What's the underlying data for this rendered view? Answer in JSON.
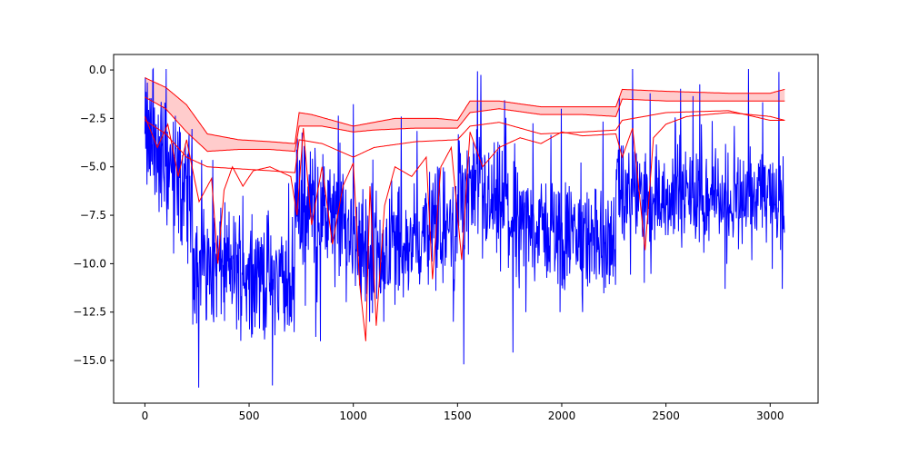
{
  "chart_data": {
    "type": "line",
    "title": "",
    "xlabel": "",
    "ylabel": "",
    "xlim": [
      -150,
      3230
    ],
    "ylim": [
      -17.2,
      0.8
    ],
    "grid": false,
    "legend": "none",
    "x_ticks": [
      0,
      500,
      1000,
      1500,
      2000,
      2500,
      3000
    ],
    "y_ticks": [
      0.0,
      -2.5,
      -5.0,
      -7.5,
      -10.0,
      -12.5,
      -15.0
    ],
    "x_tick_labels": [
      "0",
      "500",
      "1000",
      "1500",
      "2000",
      "2500",
      "3000"
    ],
    "y_tick_labels": [
      "0.0",
      "−2.5",
      "−5.0",
      "−7.5",
      "−10.0",
      "−12.5",
      "−15.0"
    ],
    "colors": {
      "signal": "#0000ff",
      "band_line": "#ff0000",
      "band_fill": "#ffcccc"
    },
    "n_points": 3070,
    "signal_segments": [
      {
        "x0": 0,
        "x1": 230,
        "start": -3.5,
        "end": -6.5,
        "amp": 2.6,
        "floor_spike": -11.7
      },
      {
        "x0": 230,
        "x1": 720,
        "start": -9.8,
        "end": -11.0,
        "amp": 2.3,
        "floor_spike": -16.4
      },
      {
        "x0": 720,
        "x1": 1050,
        "start": -6.5,
        "end": -8.8,
        "amp": 2.4,
        "floor_spike": -14.0
      },
      {
        "x0": 1050,
        "x1": 1500,
        "start": -9.5,
        "end": -8.0,
        "amp": 2.3,
        "floor_spike": -13.0
      },
      {
        "x0": 1500,
        "x1": 1820,
        "start": -6.0,
        "end": -8.0,
        "amp": 2.4,
        "floor_spike": -15.2
      },
      {
        "x0": 1820,
        "x1": 2260,
        "start": -8.0,
        "end": -9.0,
        "amp": 2.0,
        "floor_spike": -12.5
      },
      {
        "x0": 2260,
        "x1": 3070,
        "start": -6.5,
        "end": -6.5,
        "amp": 1.8,
        "floor_spike": -11.3
      }
    ],
    "band_upper": [
      {
        "x": 0,
        "y": -0.4
      },
      {
        "x": 100,
        "y": -0.9
      },
      {
        "x": 200,
        "y": -1.8
      },
      {
        "x": 300,
        "y": -3.3
      },
      {
        "x": 450,
        "y": -3.6
      },
      {
        "x": 600,
        "y": -3.7
      },
      {
        "x": 720,
        "y": -3.8
      },
      {
        "x": 740,
        "y": -2.2
      },
      {
        "x": 800,
        "y": -2.3
      },
      {
        "x": 900,
        "y": -2.6
      },
      {
        "x": 1000,
        "y": -2.9
      },
      {
        "x": 1100,
        "y": -2.7
      },
      {
        "x": 1200,
        "y": -2.5
      },
      {
        "x": 1400,
        "y": -2.5
      },
      {
        "x": 1500,
        "y": -2.6
      },
      {
        "x": 1560,
        "y": -1.6
      },
      {
        "x": 1700,
        "y": -1.6
      },
      {
        "x": 1900,
        "y": -1.9
      },
      {
        "x": 2100,
        "y": -1.9
      },
      {
        "x": 2260,
        "y": -1.9
      },
      {
        "x": 2290,
        "y": -1.0
      },
      {
        "x": 2500,
        "y": -1.1
      },
      {
        "x": 2800,
        "y": -1.2
      },
      {
        "x": 3000,
        "y": -1.2
      },
      {
        "x": 3070,
        "y": -1.0
      }
    ],
    "band_mid": [
      {
        "x": 0,
        "y": -1.4
      },
      {
        "x": 100,
        "y": -2.0
      },
      {
        "x": 200,
        "y": -3.2
      },
      {
        "x": 300,
        "y": -4.2
      },
      {
        "x": 450,
        "y": -4.1
      },
      {
        "x": 600,
        "y": -4.1
      },
      {
        "x": 720,
        "y": -4.2
      },
      {
        "x": 740,
        "y": -2.9
      },
      {
        "x": 850,
        "y": -2.9
      },
      {
        "x": 1000,
        "y": -3.2
      },
      {
        "x": 1100,
        "y": -3.1
      },
      {
        "x": 1300,
        "y": -3.0
      },
      {
        "x": 1500,
        "y": -3.0
      },
      {
        "x": 1560,
        "y": -2.2
      },
      {
        "x": 1700,
        "y": -2.0
      },
      {
        "x": 1900,
        "y": -2.3
      },
      {
        "x": 2100,
        "y": -2.3
      },
      {
        "x": 2260,
        "y": -2.4
      },
      {
        "x": 2290,
        "y": -1.5
      },
      {
        "x": 2500,
        "y": -1.6
      },
      {
        "x": 2800,
        "y": -1.6
      },
      {
        "x": 3070,
        "y": -1.6
      }
    ],
    "band_lower": [
      {
        "x": 0,
        "y": -2.6
      },
      {
        "x": 100,
        "y": -3.3
      },
      {
        "x": 200,
        "y": -4.5
      },
      {
        "x": 300,
        "y": -5.0
      },
      {
        "x": 450,
        "y": -5.1
      },
      {
        "x": 600,
        "y": -5.2
      },
      {
        "x": 720,
        "y": -5.3
      },
      {
        "x": 740,
        "y": -3.6
      },
      {
        "x": 850,
        "y": -3.8
      },
      {
        "x": 1000,
        "y": -4.5
      },
      {
        "x": 1100,
        "y": -4.0
      },
      {
        "x": 1300,
        "y": -3.7
      },
      {
        "x": 1500,
        "y": -3.6
      },
      {
        "x": 1560,
        "y": -2.9
      },
      {
        "x": 1700,
        "y": -2.7
      },
      {
        "x": 1900,
        "y": -3.3
      },
      {
        "x": 2100,
        "y": -3.2
      },
      {
        "x": 2260,
        "y": -3.1
      },
      {
        "x": 2290,
        "y": -2.6
      },
      {
        "x": 2500,
        "y": -2.2
      },
      {
        "x": 2800,
        "y": -2.1
      },
      {
        "x": 3000,
        "y": -2.6
      },
      {
        "x": 3070,
        "y": -2.6
      }
    ],
    "red_dip_line": [
      {
        "x": 0,
        "y": -2.4
      },
      {
        "x": 60,
        "y": -4.0
      },
      {
        "x": 110,
        "y": -2.8
      },
      {
        "x": 160,
        "y": -5.5
      },
      {
        "x": 200,
        "y": -3.6
      },
      {
        "x": 260,
        "y": -6.8
      },
      {
        "x": 320,
        "y": -5.6
      },
      {
        "x": 350,
        "y": -10.0
      },
      {
        "x": 380,
        "y": -6.2
      },
      {
        "x": 420,
        "y": -5.0
      },
      {
        "x": 470,
        "y": -6.0
      },
      {
        "x": 520,
        "y": -5.2
      },
      {
        "x": 600,
        "y": -5.0
      },
      {
        "x": 700,
        "y": -5.5
      },
      {
        "x": 730,
        "y": -7.5
      },
      {
        "x": 760,
        "y": -3.0
      },
      {
        "x": 800,
        "y": -8.0
      },
      {
        "x": 850,
        "y": -5.0
      },
      {
        "x": 900,
        "y": -9.0
      },
      {
        "x": 950,
        "y": -6.0
      },
      {
        "x": 1000,
        "y": -4.8
      },
      {
        "x": 1030,
        "y": -11.0
      },
      {
        "x": 1060,
        "y": -14.0
      },
      {
        "x": 1080,
        "y": -6.0
      },
      {
        "x": 1110,
        "y": -13.2
      },
      {
        "x": 1150,
        "y": -7.0
      },
      {
        "x": 1200,
        "y": -5.0
      },
      {
        "x": 1280,
        "y": -5.5
      },
      {
        "x": 1350,
        "y": -4.5
      },
      {
        "x": 1380,
        "y": -10.8
      },
      {
        "x": 1420,
        "y": -5.0
      },
      {
        "x": 1470,
        "y": -4.0
      },
      {
        "x": 1520,
        "y": -9.8
      },
      {
        "x": 1560,
        "y": -3.2
      },
      {
        "x": 1620,
        "y": -5.0
      },
      {
        "x": 1700,
        "y": -4.0
      },
      {
        "x": 1800,
        "y": -3.5
      },
      {
        "x": 1900,
        "y": -3.8
      },
      {
        "x": 2000,
        "y": -3.2
      },
      {
        "x": 2100,
        "y": -3.4
      },
      {
        "x": 2260,
        "y": -3.3
      },
      {
        "x": 2290,
        "y": -4.5
      },
      {
        "x": 2340,
        "y": -3.0
      },
      {
        "x": 2400,
        "y": -9.3
      },
      {
        "x": 2440,
        "y": -3.5
      },
      {
        "x": 2500,
        "y": -2.8
      },
      {
        "x": 2600,
        "y": -2.4
      },
      {
        "x": 2800,
        "y": -2.2
      },
      {
        "x": 3000,
        "y": -2.4
      },
      {
        "x": 3070,
        "y": -2.6
      }
    ]
  }
}
